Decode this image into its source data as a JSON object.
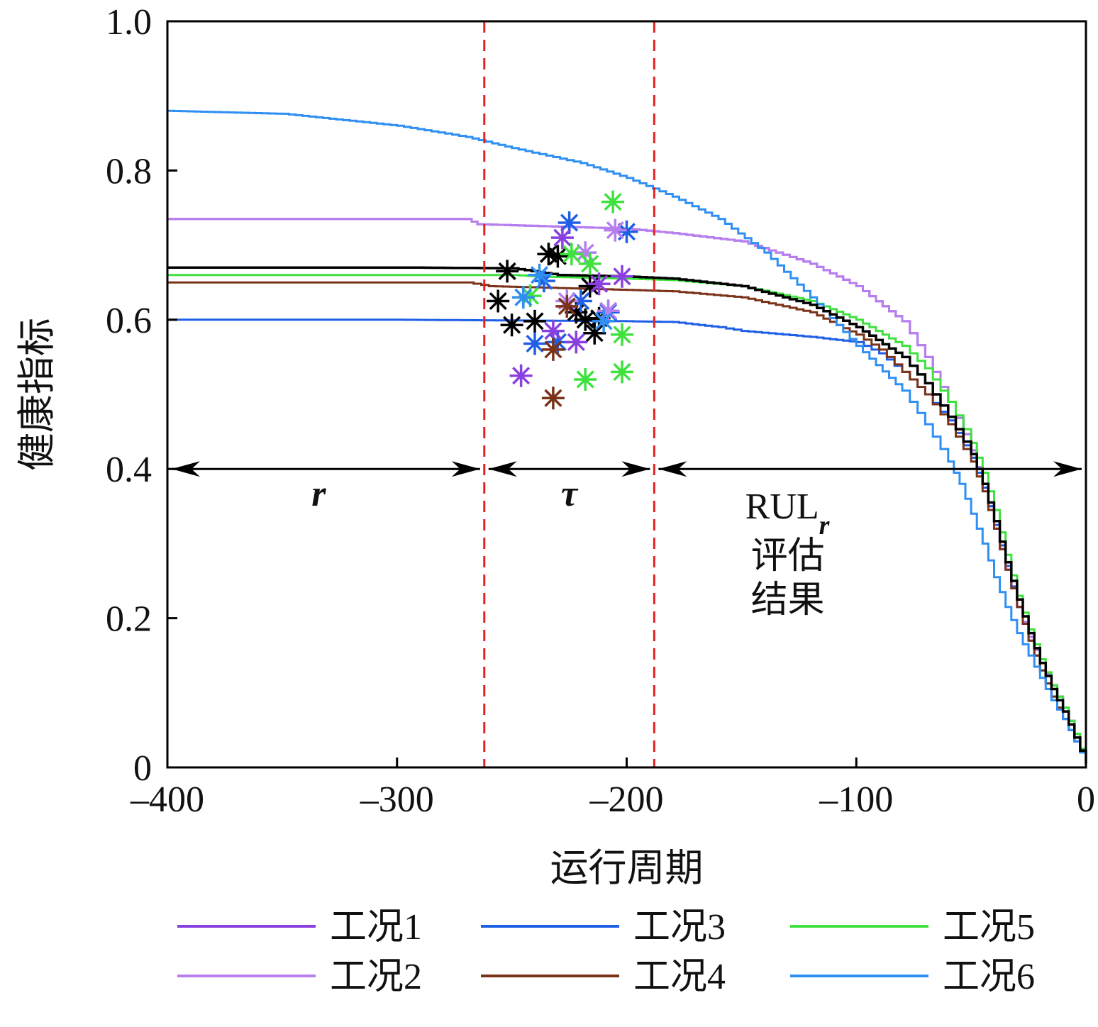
{
  "chart_data": {
    "type": "line",
    "xlabel": "运行周期",
    "ylabel": "健康指标",
    "xlim": [
      -400,
      0
    ],
    "ylim": [
      0,
      1.0
    ],
    "x_ticks": [
      -400,
      -300,
      -200,
      -100,
      0
    ],
    "x_tick_labels": [
      "–400",
      "–300",
      "–200",
      "–100",
      "0"
    ],
    "y_ticks": [
      0,
      0.2,
      0.4,
      0.6,
      0.8,
      1.0
    ],
    "y_tick_labels": [
      "0",
      "0.2",
      "0.4",
      "0.6",
      "0.8",
      "1.0"
    ],
    "grid": false,
    "legend_position": "bottom",
    "series": [
      {
        "name": "工况1",
        "color": "#8a3fe0",
        "points": [
          [
            -400,
            0.735
          ],
          [
            -300,
            0.735
          ],
          [
            -270,
            0.735
          ],
          [
            -265,
            0.728
          ],
          [
            -200,
            0.722
          ],
          [
            -180,
            0.716
          ],
          [
            -150,
            0.705
          ],
          [
            -120,
            0.675
          ],
          [
            -100,
            0.645
          ],
          [
            -80,
            0.598
          ],
          [
            -70,
            0.55
          ],
          [
            -60,
            0.49
          ],
          [
            -50,
            0.425
          ],
          [
            -45,
            0.38
          ],
          [
            -40,
            0.32
          ],
          [
            -35,
            0.265
          ],
          [
            -30,
            0.215
          ],
          [
            -25,
            0.175
          ],
          [
            -20,
            0.14
          ],
          [
            -15,
            0.11
          ],
          [
            -10,
            0.08
          ],
          [
            -5,
            0.045
          ],
          [
            0,
            0.005
          ]
        ]
      },
      {
        "name": "工况2",
        "color": "#b77fee",
        "points": [
          [
            -400,
            0.735
          ],
          [
            -300,
            0.735
          ],
          [
            -270,
            0.735
          ],
          [
            -265,
            0.728
          ],
          [
            -200,
            0.722
          ],
          [
            -180,
            0.716
          ],
          [
            -150,
            0.705
          ],
          [
            -120,
            0.675
          ],
          [
            -100,
            0.645
          ],
          [
            -80,
            0.598
          ],
          [
            -70,
            0.55
          ],
          [
            -60,
            0.49
          ],
          [
            -50,
            0.425
          ],
          [
            -45,
            0.38
          ],
          [
            -40,
            0.32
          ],
          [
            -35,
            0.265
          ],
          [
            -30,
            0.215
          ],
          [
            -25,
            0.175
          ],
          [
            -20,
            0.14
          ],
          [
            -15,
            0.11
          ],
          [
            -10,
            0.08
          ],
          [
            -5,
            0.045
          ],
          [
            0,
            0.005
          ]
        ]
      },
      {
        "name": "工况3",
        "color": "#1f5fe6",
        "points": [
          [
            -400,
            0.6
          ],
          [
            -300,
            0.6
          ],
          [
            -200,
            0.598
          ],
          [
            -180,
            0.597
          ],
          [
            -160,
            0.59
          ],
          [
            -150,
            0.585
          ],
          [
            -120,
            0.577
          ],
          [
            -100,
            0.57
          ],
          [
            -90,
            0.555
          ],
          [
            -80,
            0.53
          ],
          [
            -70,
            0.5
          ],
          [
            -60,
            0.465
          ],
          [
            -50,
            0.415
          ],
          [
            -45,
            0.375
          ],
          [
            -40,
            0.325
          ],
          [
            -35,
            0.27
          ],
          [
            -30,
            0.215
          ],
          [
            -25,
            0.17
          ],
          [
            -20,
            0.13
          ],
          [
            -15,
            0.095
          ],
          [
            -10,
            0.065
          ],
          [
            -5,
            0.035
          ],
          [
            0,
            0.005
          ]
        ]
      },
      {
        "name": "工况4",
        "color": "#7a3218",
        "points": [
          [
            -400,
            0.65
          ],
          [
            -300,
            0.65
          ],
          [
            -270,
            0.65
          ],
          [
            -260,
            0.645
          ],
          [
            -200,
            0.64
          ],
          [
            -180,
            0.638
          ],
          [
            -150,
            0.63
          ],
          [
            -120,
            0.61
          ],
          [
            -100,
            0.58
          ],
          [
            -90,
            0.56
          ],
          [
            -80,
            0.53
          ],
          [
            -70,
            0.5
          ],
          [
            -60,
            0.46
          ],
          [
            -50,
            0.41
          ],
          [
            -45,
            0.37
          ],
          [
            -40,
            0.32
          ],
          [
            -35,
            0.265
          ],
          [
            -30,
            0.215
          ],
          [
            -25,
            0.17
          ],
          [
            -20,
            0.13
          ],
          [
            -15,
            0.095
          ],
          [
            -10,
            0.065
          ],
          [
            -5,
            0.035
          ],
          [
            0,
            0.005
          ]
        ]
      },
      {
        "name": "工况5",
        "color": "#3ee13e",
        "points": [
          [
            -400,
            0.66
          ],
          [
            -300,
            0.66
          ],
          [
            -250,
            0.66
          ],
          [
            -240,
            0.658
          ],
          [
            -200,
            0.655
          ],
          [
            -180,
            0.653
          ],
          [
            -150,
            0.645
          ],
          [
            -120,
            0.625
          ],
          [
            -100,
            0.6
          ],
          [
            -80,
            0.565
          ],
          [
            -70,
            0.535
          ],
          [
            -60,
            0.49
          ],
          [
            -50,
            0.435
          ],
          [
            -45,
            0.395
          ],
          [
            -40,
            0.345
          ],
          [
            -35,
            0.285
          ],
          [
            -30,
            0.23
          ],
          [
            -25,
            0.185
          ],
          [
            -20,
            0.145
          ],
          [
            -15,
            0.11
          ],
          [
            -10,
            0.08
          ],
          [
            -5,
            0.045
          ],
          [
            0,
            0.005
          ]
        ]
      },
      {
        "name": "工况6",
        "color": "#2f8ff2",
        "points": [
          [
            -400,
            0.88
          ],
          [
            -350,
            0.876
          ],
          [
            -300,
            0.86
          ],
          [
            -270,
            0.845
          ],
          [
            -250,
            0.83
          ],
          [
            -220,
            0.81
          ],
          [
            -200,
            0.79
          ],
          [
            -180,
            0.765
          ],
          [
            -160,
            0.735
          ],
          [
            -140,
            0.69
          ],
          [
            -120,
            0.63
          ],
          [
            -100,
            0.565
          ],
          [
            -80,
            0.505
          ],
          [
            -70,
            0.46
          ],
          [
            -60,
            0.41
          ],
          [
            -55,
            0.38
          ],
          [
            -50,
            0.34
          ],
          [
            -45,
            0.3
          ],
          [
            -40,
            0.255
          ],
          [
            -35,
            0.215
          ],
          [
            -30,
            0.18
          ],
          [
            -25,
            0.15
          ],
          [
            -20,
            0.12
          ],
          [
            -15,
            0.09
          ],
          [
            -10,
            0.065
          ],
          [
            -5,
            0.035
          ],
          [
            0,
            0.005
          ]
        ]
      },
      {
        "name": "",
        "color": "#000000",
        "points": [
          [
            -400,
            0.67
          ],
          [
            -300,
            0.67
          ],
          [
            -250,
            0.669
          ],
          [
            -230,
            0.66
          ],
          [
            -200,
            0.658
          ],
          [
            -180,
            0.655
          ],
          [
            -150,
            0.645
          ],
          [
            -120,
            0.62
          ],
          [
            -100,
            0.59
          ],
          [
            -80,
            0.55
          ],
          [
            -70,
            0.515
          ],
          [
            -60,
            0.47
          ],
          [
            -50,
            0.42
          ],
          [
            -45,
            0.38
          ],
          [
            -40,
            0.33
          ],
          [
            -35,
            0.275
          ],
          [
            -30,
            0.225
          ],
          [
            -25,
            0.18
          ],
          [
            -20,
            0.14
          ],
          [
            -15,
            0.105
          ],
          [
            -10,
            0.075
          ],
          [
            -5,
            0.04
          ],
          [
            0,
            0.005
          ]
        ]
      }
    ],
    "scatter_series": [
      {
        "color": "#000000",
        "marker": "asterisk",
        "points": [
          [
            -252,
            0.665
          ],
          [
            -256,
            0.625
          ],
          [
            -250,
            0.593
          ],
          [
            -240,
            0.598
          ],
          [
            -234,
            0.688
          ],
          [
            -230,
            0.685
          ],
          [
            -216,
            0.645
          ],
          [
            -222,
            0.61
          ],
          [
            -218,
            0.6
          ],
          [
            -214,
            0.582
          ],
          [
            -212,
            0.602
          ]
        ]
      },
      {
        "color": "#1f5fe6",
        "marker": "asterisk",
        "points": [
          [
            -225,
            0.73
          ],
          [
            -200,
            0.718
          ],
          [
            -236,
            0.652
          ],
          [
            -240,
            0.568
          ],
          [
            -230,
            0.57
          ],
          [
            -208,
            0.61
          ],
          [
            -220,
            0.625
          ]
        ]
      },
      {
        "color": "#8a3fe0",
        "marker": "asterisk",
        "points": [
          [
            -246,
            0.525
          ],
          [
            -228,
            0.71
          ],
          [
            -202,
            0.658
          ],
          [
            -212,
            0.648
          ],
          [
            -232,
            0.585
          ],
          [
            -222,
            0.57
          ]
        ]
      },
      {
        "color": "#b77fee",
        "marker": "asterisk",
        "points": [
          [
            -205,
            0.72
          ],
          [
            -218,
            0.69
          ],
          [
            -226,
            0.625
          ],
          [
            -208,
            0.612
          ]
        ]
      },
      {
        "color": "#3ee13e",
        "marker": "asterisk",
        "points": [
          [
            -206,
            0.758
          ],
          [
            -224,
            0.688
          ],
          [
            -216,
            0.675
          ],
          [
            -242,
            0.632
          ],
          [
            -202,
            0.58
          ],
          [
            -202,
            0.53
          ],
          [
            -218,
            0.52
          ]
        ]
      },
      {
        "color": "#7a3218",
        "marker": "asterisk",
        "points": [
          [
            -232,
            0.495
          ],
          [
            -232,
            0.56
          ],
          [
            -226,
            0.618
          ]
        ]
      },
      {
        "color": "#2f8ff2",
        "marker": "asterisk",
        "points": [
          [
            -238,
            0.66
          ],
          [
            -210,
            0.598
          ],
          [
            -245,
            0.63
          ]
        ]
      }
    ],
    "vertical_lines": [
      {
        "x": -262,
        "color": "#e52222",
        "style": "dashed"
      },
      {
        "x": -188,
        "color": "#e52222",
        "style": "dashed"
      }
    ],
    "horizontal_arrows": {
      "y": 0.4,
      "segments": [
        {
          "from": -400,
          "to": -262,
          "label": "r"
        },
        {
          "from": -262,
          "to": -188,
          "label": "τ"
        },
        {
          "from": -188,
          "to": 0,
          "label": "RUL"
        }
      ]
    },
    "annotation": {
      "rul_main": "RUL",
      "rul_sub": "r",
      "lines": [
        "评估",
        "结果"
      ]
    }
  }
}
